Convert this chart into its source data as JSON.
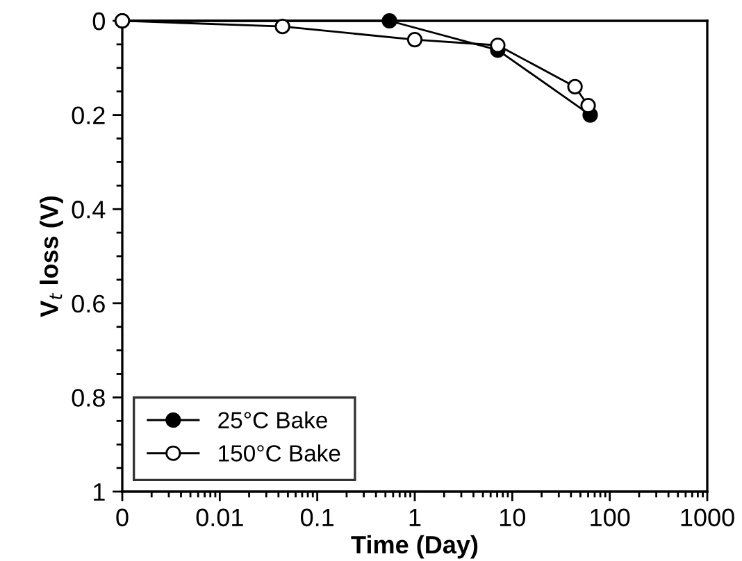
{
  "chart_data": {
    "type": "line",
    "xlabel": "Time (Day)",
    "ylabel": "V$_{t}$ loss (V)",
    "log": "x",
    "xlim": [
      0.001,
      1000
    ],
    "xticks": [
      {
        "value": 0.001,
        "label": "0"
      },
      0.01,
      0.1,
      1,
      10,
      100,
      1000
    ],
    "ylim": [
      1,
      0
    ],
    "yticks": [
      {
        "value": 1,
        "label": "1"
      },
      0.8,
      0.6,
      0.4,
      0.2,
      {
        "value": 0,
        "label": "0"
      }
    ],
    "grid": false,
    "legend": "bottom left",
    "line_style": "solid",
    "series": [
      {
        "name": "25°C Bake",
        "color": "#000000",
        "marker": "circle",
        "x": [
          0.001,
          0.55,
          7.1,
          63
        ],
        "values": [
          0,
          0,
          0.062,
          0.2
        ]
      },
      {
        "name": "150°C Bake",
        "color": "#ffffff",
        "marker": "circle",
        "x": [
          0.001,
          0.044,
          1.0,
          7.1,
          44,
          60
        ],
        "values": [
          0,
          0.012,
          0.04,
          0.052,
          0.14,
          0.18
        ]
      }
    ]
  }
}
